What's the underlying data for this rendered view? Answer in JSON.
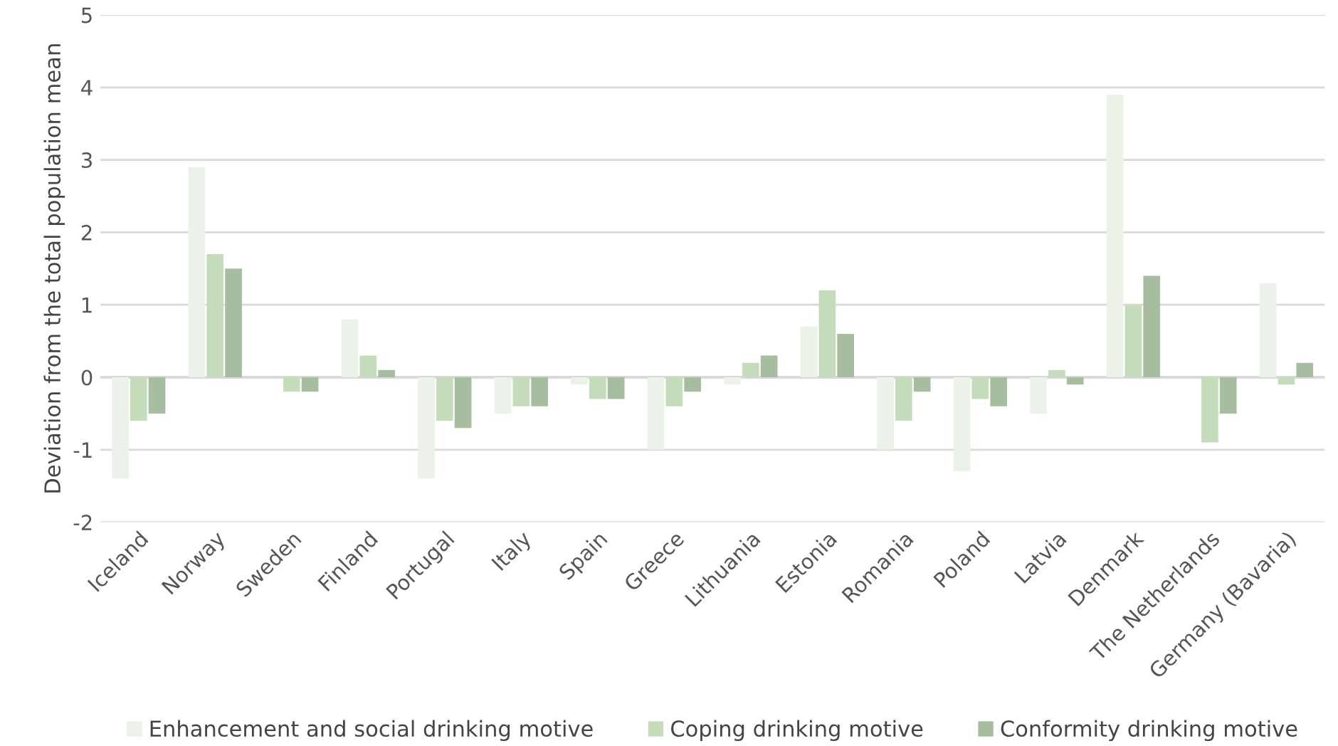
{
  "chart_data": {
    "type": "bar",
    "ylabel": "Deviation from the total population mean",
    "categories": [
      "Iceland",
      "Norway",
      "Sweden",
      "Finland",
      "Portugal",
      "Italy",
      "Spain",
      "Greece",
      "Lithuania",
      "Estonia",
      "Romania",
      "Poland",
      "Latvia",
      "Denmark",
      "The Netherlands",
      "Germany (Bavaria)"
    ],
    "series": [
      {
        "name": "Enhancement and social drinking motive",
        "color": "#ebf3e8",
        "values": [
          -1.4,
          2.9,
          0,
          0.8,
          -1.4,
          -0.5,
          -0.1,
          -1.0,
          -0.1,
          0.7,
          -1.0,
          -1.3,
          -0.5,
          3.9,
          0,
          1.3
        ]
      },
      {
        "name": "Coping drinking motive",
        "color": "#c5dcbb",
        "values": [
          -0.6,
          1.7,
          -0.2,
          0.3,
          -0.6,
          -0.4,
          -0.3,
          -0.4,
          0.2,
          1.2,
          -0.6,
          -0.3,
          0.1,
          1.0,
          -0.9,
          -0.1
        ]
      },
      {
        "name": "Conformity drinking motive",
        "color": "#a6bd9f",
        "values": [
          -0.5,
          1.5,
          -0.2,
          0.1,
          -0.7,
          -0.4,
          -0.3,
          -0.2,
          0.3,
          0.6,
          -0.2,
          -0.4,
          -0.1,
          1.4,
          -0.5,
          0.2
        ]
      }
    ],
    "ylim": [
      -2,
      5
    ],
    "yticks": [
      -2,
      -1,
      0,
      1,
      2,
      3,
      4,
      5
    ],
    "grid": "y",
    "legend": "bottom"
  }
}
